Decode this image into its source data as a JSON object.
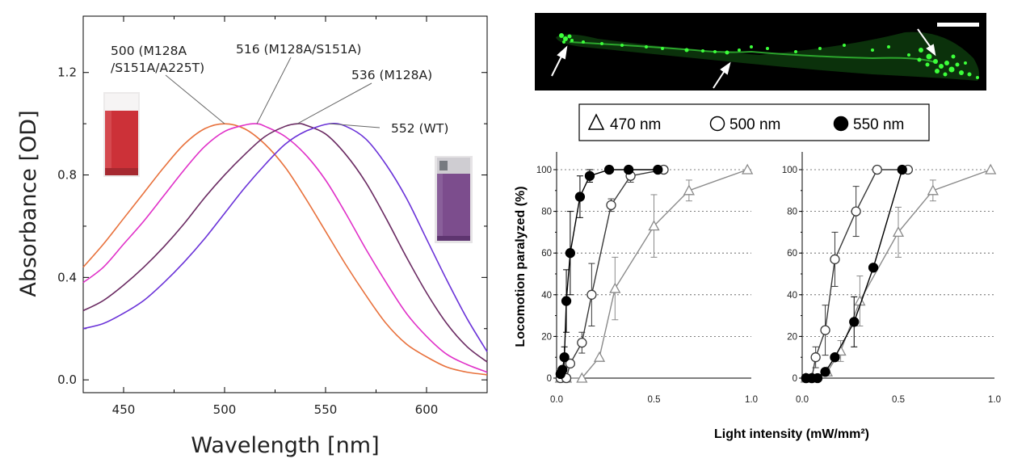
{
  "chart_data": [
    {
      "type": "line",
      "xlabel": "Wavelength [nm]",
      "ylabel": "Absorbance [OD]",
      "xlim": [
        430,
        630
      ],
      "ylim": [
        -0.05,
        1.42
      ],
      "xticks": [
        450,
        500,
        550,
        600
      ],
      "yticks": [
        "0.0",
        "0.4",
        "0.8",
        "1.2"
      ],
      "series": [
        {
          "name": "500 (M128A /S151A/A225T)",
          "peak": 500,
          "color": "#e8713c",
          "lines": [
            "500 (M128A",
            "/S151A/A225T)"
          ],
          "x": [
            430,
            440,
            450,
            460,
            470,
            480,
            490,
            500,
            510,
            520,
            530,
            540,
            550,
            560,
            570,
            580,
            590,
            600,
            610,
            620,
            630
          ],
          "y": [
            0.44,
            0.53,
            0.63,
            0.73,
            0.83,
            0.92,
            0.98,
            1.0,
            0.98,
            0.92,
            0.83,
            0.71,
            0.58,
            0.45,
            0.33,
            0.22,
            0.14,
            0.09,
            0.05,
            0.03,
            0.02
          ]
        },
        {
          "name": "516 (M128A/S151A)",
          "peak": 516,
          "color": "#e030c8",
          "lines": [
            "516 (M128A/S151A)"
          ],
          "x": [
            430,
            440,
            450,
            460,
            470,
            480,
            490,
            500,
            510,
            516,
            520,
            530,
            540,
            550,
            560,
            570,
            580,
            590,
            600,
            610,
            620,
            630
          ],
          "y": [
            0.38,
            0.44,
            0.53,
            0.62,
            0.72,
            0.82,
            0.91,
            0.97,
            0.995,
            1.0,
            0.99,
            0.95,
            0.88,
            0.78,
            0.65,
            0.51,
            0.38,
            0.26,
            0.17,
            0.1,
            0.06,
            0.03
          ]
        },
        {
          "name": "536 (M128A)",
          "peak": 536,
          "color": "#6a2a62",
          "lines": [
            "536 (M128A)"
          ],
          "x": [
            430,
            440,
            450,
            460,
            470,
            480,
            490,
            500,
            510,
            520,
            530,
            536,
            540,
            550,
            560,
            570,
            580,
            590,
            600,
            610,
            620,
            630
          ],
          "y": [
            0.27,
            0.31,
            0.37,
            0.44,
            0.52,
            0.61,
            0.71,
            0.8,
            0.88,
            0.95,
            0.99,
            1.0,
            0.995,
            0.96,
            0.88,
            0.77,
            0.63,
            0.48,
            0.34,
            0.22,
            0.13,
            0.07
          ]
        },
        {
          "name": "552 (WT)",
          "peak": 552,
          "color": "#6a32d8",
          "lines": [
            "552 (WT)"
          ],
          "x": [
            430,
            440,
            450,
            460,
            470,
            480,
            490,
            500,
            510,
            520,
            530,
            540,
            552,
            560,
            570,
            580,
            590,
            600,
            610,
            620,
            630
          ],
          "y": [
            0.2,
            0.22,
            0.26,
            0.31,
            0.38,
            0.46,
            0.55,
            0.65,
            0.75,
            0.84,
            0.92,
            0.97,
            1.0,
            0.99,
            0.94,
            0.84,
            0.71,
            0.55,
            0.39,
            0.24,
            0.11
          ]
        }
      ]
    },
    {
      "type": "line",
      "xlabel": "Light intensity (mW/mm²)",
      "ylabel": "Locomotion paralyzed (%)",
      "xlim": [
        0.0,
        1.0
      ],
      "ylim": [
        0,
        100
      ],
      "xticks": [
        "0.0",
        "0.5",
        "1.0"
      ],
      "yticks": [
        "0",
        "20",
        "40",
        "60",
        "80",
        "100"
      ],
      "series": [
        {
          "name": "470 nm",
          "marker": "triangle",
          "x": [
            0.02,
            0.05,
            0.13,
            0.22,
            0.3,
            0.5,
            0.68,
            0.98
          ],
          "y": [
            0,
            0,
            0,
            10,
            43,
            73,
            90,
            100
          ],
          "err": [
            0,
            0,
            0,
            0,
            15,
            15,
            5,
            0
          ]
        },
        {
          "name": "500 nm",
          "marker": "open-circle",
          "x": [
            0.02,
            0.05,
            0.07,
            0.13,
            0.18,
            0.28,
            0.38,
            0.55
          ],
          "y": [
            0,
            0,
            7,
            17,
            40,
            83,
            97,
            100
          ],
          "err": [
            0,
            0,
            0,
            5,
            15,
            3,
            3,
            0
          ]
        },
        {
          "name": "550 nm",
          "marker": "filled-circle",
          "x": [
            0.02,
            0.03,
            0.04,
            0.05,
            0.07,
            0.12,
            0.17,
            0.27,
            0.37,
            0.52
          ],
          "y": [
            2,
            4,
            10,
            37,
            60,
            87,
            97,
            100,
            100,
            100
          ],
          "err": [
            0,
            0,
            5,
            15,
            20,
            10,
            3,
            0,
            0,
            0
          ]
        }
      ]
    },
    {
      "type": "line",
      "xlabel": "Light intensity (mW/mm²)",
      "xlim": [
        0.0,
        1.0
      ],
      "ylim": [
        0,
        100
      ],
      "xticks": [
        "0.0",
        "0.5",
        "1.0"
      ],
      "yticks": [
        "0",
        "20",
        "40",
        "60",
        "80",
        "100"
      ],
      "series": [
        {
          "name": "470 nm",
          "marker": "triangle",
          "x": [
            0.02,
            0.05,
            0.13,
            0.2,
            0.3,
            0.5,
            0.68,
            0.98
          ],
          "y": [
            0,
            0,
            3,
            13,
            37,
            70,
            90,
            100
          ],
          "err": [
            0,
            0,
            0,
            5,
            12,
            12,
            5,
            0
          ]
        },
        {
          "name": "500 nm",
          "marker": "open-circle",
          "x": [
            0.02,
            0.05,
            0.07,
            0.12,
            0.17,
            0.28,
            0.39,
            0.55
          ],
          "y": [
            0,
            0,
            10,
            23,
            57,
            80,
            100,
            100
          ],
          "err": [
            0,
            0,
            5,
            12,
            13,
            12,
            0,
            0
          ]
        },
        {
          "name": "550 nm",
          "marker": "filled-circle",
          "x": [
            0.02,
            0.05,
            0.08,
            0.12,
            0.17,
            0.27,
            0.37,
            0.52
          ],
          "y": [
            0,
            0,
            0,
            3,
            10,
            27,
            53,
            100
          ],
          "err": [
            0,
            0,
            0,
            0,
            0,
            12,
            0,
            0
          ]
        }
      ]
    }
  ],
  "legend": {
    "items": [
      {
        "label": "470 nm",
        "marker": "triangle"
      },
      {
        "label": "500 nm",
        "marker": "open-circle"
      },
      {
        "label": "550 nm",
        "marker": "filled-circle"
      }
    ]
  },
  "colors": {
    "series_470": "#888888",
    "series_500": "#444444",
    "series_550": "#000000",
    "cuvette_red": "#c8303a",
    "cuvette_purple": "#7a4a8c",
    "fluorescence": "#39ff3a"
  }
}
